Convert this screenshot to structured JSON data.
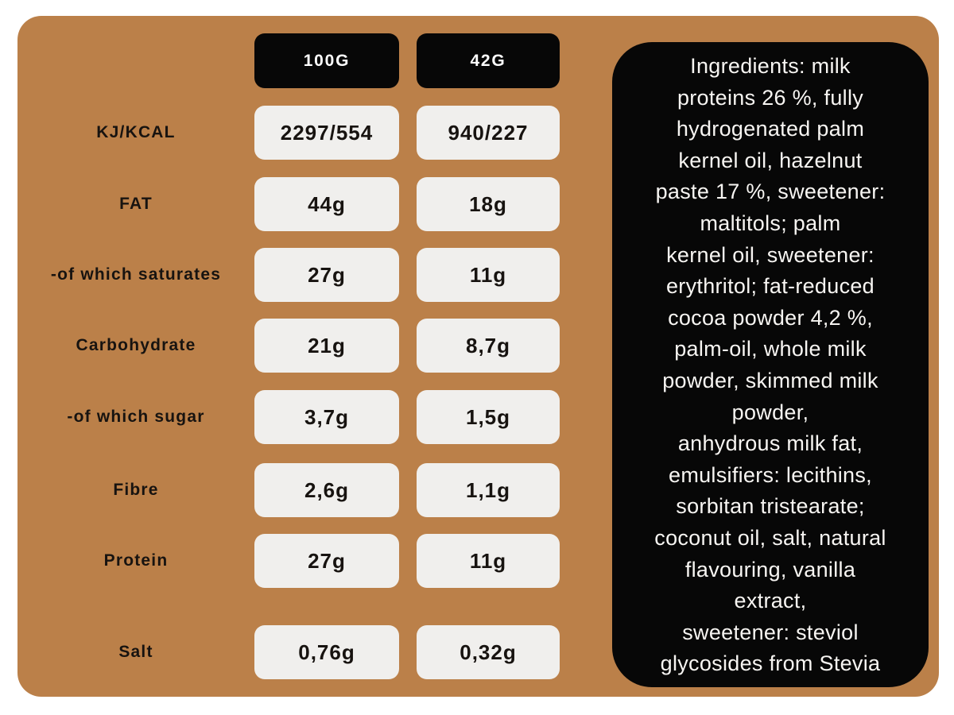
{
  "colors": {
    "background": "#BB8049",
    "panel": "#070707",
    "value_box": "#F0EFED",
    "text_dark": "#171310",
    "text_light": "#F7F5F2"
  },
  "table": {
    "columns": [
      "100G",
      "42G"
    ],
    "rows": [
      {
        "label": "KJ/KCAL",
        "values": [
          "2297/554",
          "940/227"
        ]
      },
      {
        "label": "FAT",
        "values": [
          "44g",
          "18g"
        ]
      },
      {
        "label": "-of which saturates",
        "values": [
          "27g",
          "11g"
        ]
      },
      {
        "label": "Carbohydrate",
        "values": [
          "21g",
          "8,7g"
        ]
      },
      {
        "label": "-of which sugar",
        "values": [
          "3,7g",
          "1,5g"
        ]
      },
      {
        "label": "Fibre",
        "values": [
          "2,6g",
          "1,1g"
        ]
      },
      {
        "label": "Protein",
        "values": [
          "27g",
          "11g"
        ]
      },
      {
        "label": "Salt",
        "values": [
          "0,76g",
          "0,32g"
        ]
      }
    ]
  },
  "ingredients": {
    "text": "Ingredients: milk\nproteins 26 %, fully\nhydrogenated palm\nkernel oil, hazelnut\npaste 17 %, sweetener:\nmaltitols; palm\nkernel oil, sweetener:\nerythritol; fat-reduced\ncocoa powder 4,2 %,\npalm-oil, whole milk\npowder, skimmed milk\npowder,\nanhydrous milk fat,\nemulsifiers: lecithins,\nsorbitan tristearate;\ncoconut oil, salt, natural\nflavouring, vanilla\nextract,\nsweetener: steviol\nglycosides from Stevia"
  }
}
